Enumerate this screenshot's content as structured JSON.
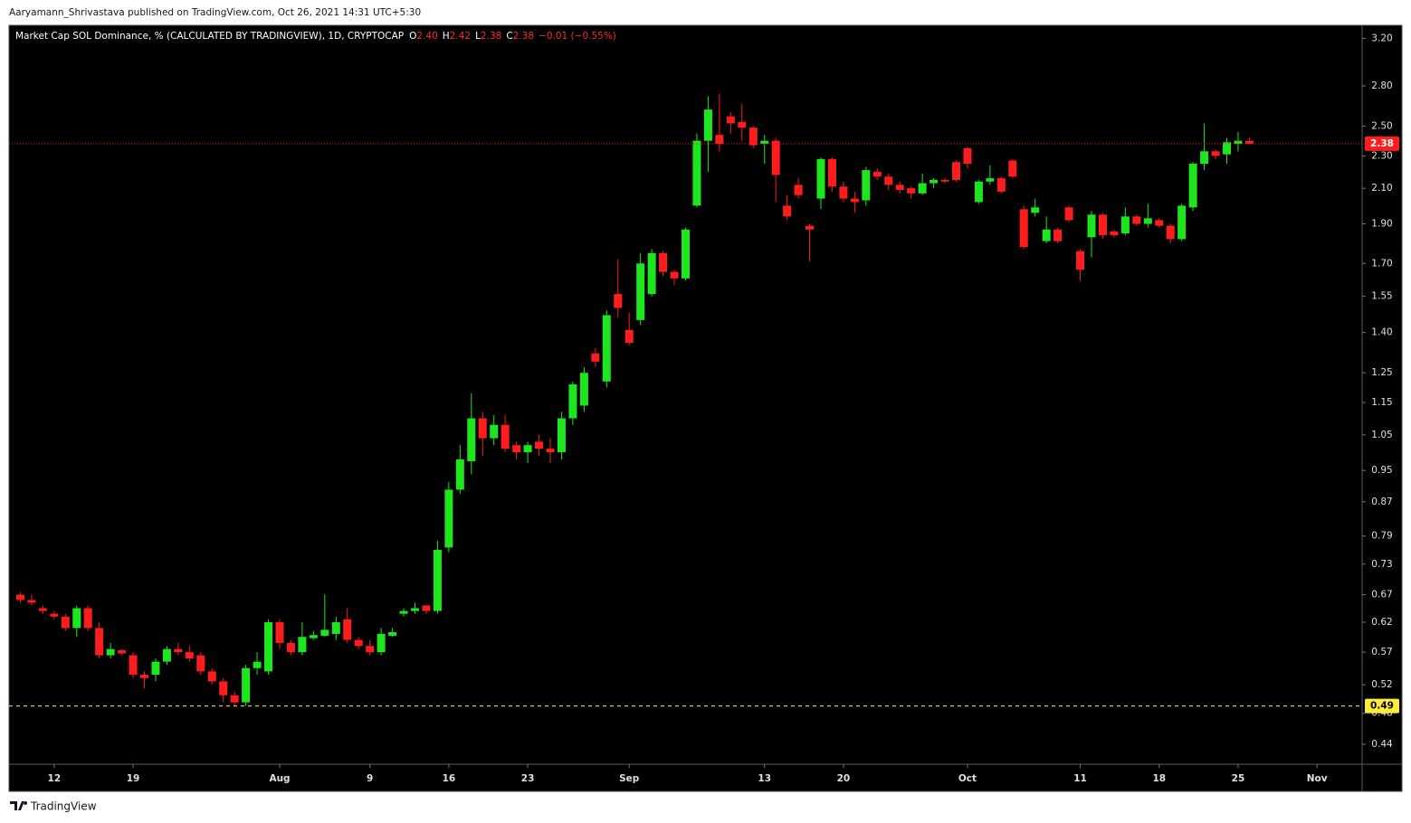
{
  "header": {
    "publisher": "Aaryamann_Shrivastava published on TradingView.com, Oct 26, 2021 14:31 UTC+5:30"
  },
  "footer": {
    "brand": "TradingView"
  },
  "chart_data": {
    "type": "candlestick",
    "title": "Market Cap SOL Dominance, % (CALCULATED BY TRADINGVIEW), 1D, CRYPTOCAP",
    "ohlc": {
      "labels": [
        "O",
        "H",
        "L",
        "C"
      ],
      "values": [
        2.4,
        2.42,
        2.38,
        2.38
      ],
      "value_labels": [
        "2.40",
        "2.42",
        "2.38",
        "2.38"
      ],
      "change": "−0.01 (−0.55%)"
    },
    "log_scale": true,
    "grid": false,
    "up_color": "#1ee61e",
    "down_color": "#ff1c1c",
    "xlim": [
      "2021-07-08",
      "2021-11-05"
    ],
    "ylim": [
      0.416,
      3.32
    ],
    "xticks": [
      {
        "value": "2021-07-12",
        "label": "12"
      },
      {
        "value": "2021-07-19",
        "label": "19"
      },
      {
        "value": "2021-08-01",
        "label": "Aug"
      },
      {
        "value": "2021-08-09",
        "label": "9"
      },
      {
        "value": "2021-08-16",
        "label": "16"
      },
      {
        "value": "2021-08-23",
        "label": "23"
      },
      {
        "value": "2021-09-01",
        "label": "Sep"
      },
      {
        "value": "2021-09-13",
        "label": "13"
      },
      {
        "value": "2021-09-20",
        "label": "20"
      },
      {
        "value": "2021-10-01",
        "label": "Oct"
      },
      {
        "value": "2021-10-11",
        "label": "11"
      },
      {
        "value": "2021-10-18",
        "label": "18"
      },
      {
        "value": "2021-10-25",
        "label": "25"
      },
      {
        "value": "2021-11-01",
        "label": "Nov"
      }
    ],
    "yticks": [
      {
        "value": 3.2,
        "label": "3.20"
      },
      {
        "value": 2.8,
        "label": "2.80"
      },
      {
        "value": 2.5,
        "label": "2.50"
      },
      {
        "value": 2.3,
        "label": "2.30"
      },
      {
        "value": 2.1,
        "label": "2.10"
      },
      {
        "value": 1.9,
        "label": "1.90"
      },
      {
        "value": 1.7,
        "label": "1.70"
      },
      1.55,
      {
        "value": 1.4,
        "label": "1.40"
      },
      1.25,
      1.15,
      1.05,
      0.95,
      0.87,
      0.79,
      0.73,
      0.67,
      0.62,
      0.57,
      0.52,
      0.48,
      0.44
    ],
    "last_price": {
      "value": 2.38,
      "label": "2.38",
      "color": "#ff1c1c"
    },
    "low_line": {
      "value": 0.49,
      "label": "0.49",
      "color": "#ffeb3b"
    },
    "x": [
      "2021-07-09",
      "2021-07-10",
      "2021-07-11",
      "2021-07-12",
      "2021-07-13",
      "2021-07-14",
      "2021-07-15",
      "2021-07-16",
      "2021-07-17",
      "2021-07-18",
      "2021-07-19",
      "2021-07-20",
      "2021-07-21",
      "2021-07-22",
      "2021-07-23",
      "2021-07-24",
      "2021-07-25",
      "2021-07-26",
      "2021-07-27",
      "2021-07-28",
      "2021-07-29",
      "2021-07-30",
      "2021-07-31",
      "2021-08-01",
      "2021-08-02",
      "2021-08-03",
      "2021-08-04",
      "2021-08-05",
      "2021-08-06",
      "2021-08-07",
      "2021-08-08",
      "2021-08-09",
      "2021-08-10",
      "2021-08-11",
      "2021-08-12",
      "2021-08-13",
      "2021-08-14",
      "2021-08-15",
      "2021-08-16",
      "2021-08-17",
      "2021-08-18",
      "2021-08-19",
      "2021-08-20",
      "2021-08-21",
      "2021-08-22",
      "2021-08-23",
      "2021-08-24",
      "2021-08-25",
      "2021-08-26",
      "2021-08-27",
      "2021-08-28",
      "2021-08-29",
      "2021-08-30",
      "2021-08-31",
      "2021-09-01",
      "2021-09-02",
      "2021-09-03",
      "2021-09-04",
      "2021-09-05",
      "2021-09-06",
      "2021-09-07",
      "2021-09-08",
      "2021-09-09",
      "2021-09-10",
      "2021-09-11",
      "2021-09-12",
      "2021-09-13",
      "2021-09-14",
      "2021-09-15",
      "2021-09-16",
      "2021-09-17",
      "2021-09-18",
      "2021-09-19",
      "2021-09-20",
      "2021-09-21",
      "2021-09-22",
      "2021-09-23",
      "2021-09-24",
      "2021-09-25",
      "2021-09-26",
      "2021-09-27",
      "2021-09-28",
      "2021-09-29",
      "2021-09-30",
      "2021-10-01",
      "2021-10-02",
      "2021-10-03",
      "2021-10-04",
      "2021-10-05",
      "2021-10-06",
      "2021-10-07",
      "2021-10-08",
      "2021-10-09",
      "2021-10-10",
      "2021-10-11",
      "2021-10-12",
      "2021-10-13",
      "2021-10-14",
      "2021-10-15",
      "2021-10-16",
      "2021-10-17",
      "2021-10-18",
      "2021-10-19",
      "2021-10-20",
      "2021-10-21",
      "2021-10-22",
      "2021-10-23",
      "2021-10-24",
      "2021-10-25",
      "2021-10-26"
    ],
    "open": [
      0.67,
      0.66,
      0.645,
      0.635,
      0.63,
      0.61,
      0.645,
      0.61,
      0.565,
      0.573,
      0.565,
      0.535,
      0.535,
      0.555,
      0.575,
      0.57,
      0.565,
      0.54,
      0.525,
      0.505,
      0.495,
      0.545,
      0.54,
      0.62,
      0.585,
      0.57,
      0.593,
      0.597,
      0.6,
      0.625,
      0.59,
      0.58,
      0.57,
      0.597,
      0.635,
      0.64,
      0.65,
      0.64,
      0.765,
      0.9,
      0.975,
      1.1,
      1.04,
      1.08,
      1.02,
      1.0,
      1.03,
      1.01,
      1.0,
      1.1,
      1.14,
      1.32,
      1.22,
      1.56,
      1.41,
      1.45,
      1.56,
      1.75,
      1.66,
      1.63,
      2.0,
      2.4,
      2.44,
      2.57,
      2.53,
      2.49,
      2.38,
      2.4,
      2.0,
      2.12,
      1.89,
      2.04,
      2.28,
      2.11,
      2.04,
      2.03,
      2.2,
      2.17,
      2.12,
      2.1,
      2.07,
      2.13,
      2.15,
      2.26,
      2.35,
      2.02,
      2.14,
      2.16,
      2.27,
      1.98,
      1.96,
      1.81,
      1.87,
      1.99,
      1.76,
      1.83,
      1.95,
      1.86,
      1.85,
      1.94,
      1.9,
      1.92,
      1.89,
      1.82,
      1.99,
      2.25,
      2.33,
      2.31,
      2.38,
      2.4
    ],
    "high": [
      0.675,
      0.67,
      0.65,
      0.64,
      0.635,
      0.65,
      0.65,
      0.62,
      0.585,
      0.575,
      0.57,
      0.54,
      0.56,
      0.58,
      0.585,
      0.58,
      0.57,
      0.545,
      0.53,
      0.51,
      0.55,
      0.57,
      0.625,
      0.625,
      0.59,
      0.62,
      0.605,
      0.67,
      0.63,
      0.645,
      0.595,
      0.59,
      0.61,
      0.61,
      0.645,
      0.655,
      0.65,
      0.78,
      0.92,
      1.02,
      1.18,
      1.12,
      1.11,
      1.11,
      1.03,
      1.03,
      1.05,
      1.04,
      1.12,
      1.22,
      1.27,
      1.34,
      1.49,
      1.72,
      1.48,
      1.75,
      1.77,
      1.76,
      1.67,
      1.88,
      2.45,
      2.72,
      2.74,
      2.6,
      2.66,
      2.5,
      2.44,
      2.42,
      2.06,
      2.16,
      1.9,
      2.29,
      2.29,
      2.14,
      2.08,
      2.23,
      2.22,
      2.19,
      2.14,
      2.11,
      2.19,
      2.16,
      2.16,
      2.27,
      2.36,
      2.15,
      2.24,
      2.17,
      2.28,
      2.0,
      2.04,
      1.94,
      1.88,
      2.0,
      1.77,
      1.97,
      1.96,
      1.87,
      1.99,
      1.95,
      2.01,
      1.93,
      1.9,
      2.01,
      2.26,
      2.52,
      2.34,
      2.42,
      2.46,
      2.42
    ],
    "low": [
      0.655,
      0.65,
      0.635,
      0.625,
      0.605,
      0.595,
      0.605,
      0.56,
      0.56,
      0.565,
      0.53,
      0.515,
      0.525,
      0.55,
      0.565,
      0.555,
      0.535,
      0.52,
      0.495,
      0.49,
      0.49,
      0.535,
      0.535,
      0.575,
      0.565,
      0.565,
      0.59,
      0.595,
      0.59,
      0.585,
      0.575,
      0.565,
      0.565,
      0.595,
      0.63,
      0.635,
      0.635,
      0.635,
      0.755,
      0.89,
      0.94,
      0.99,
      1.02,
      1.0,
      0.98,
      0.97,
      0.99,
      0.97,
      0.98,
      1.08,
      1.12,
      1.27,
      1.2,
      1.46,
      1.35,
      1.43,
      1.55,
      1.64,
      1.6,
      1.62,
      1.99,
      2.2,
      2.33,
      2.45,
      2.4,
      2.35,
      2.25,
      2.02,
      1.92,
      2.04,
      1.71,
      1.98,
      2.08,
      2.02,
      1.96,
      2.0,
      2.15,
      2.09,
      2.07,
      2.04,
      2.06,
      2.1,
      2.13,
      2.14,
      2.22,
      2.01,
      2.12,
      2.07,
      2.16,
      1.77,
      1.94,
      1.8,
      1.8,
      1.91,
      1.62,
      1.73,
      1.82,
      1.83,
      1.84,
      1.89,
      1.88,
      1.88,
      1.8,
      1.81,
      1.97,
      2.21,
      2.28,
      2.25,
      2.33,
      2.38
    ],
    "close": [
      0.66,
      0.655,
      0.64,
      0.63,
      0.61,
      0.645,
      0.61,
      0.565,
      0.575,
      0.568,
      0.535,
      0.53,
      0.555,
      0.575,
      0.57,
      0.56,
      0.54,
      0.525,
      0.505,
      0.495,
      0.545,
      0.555,
      0.62,
      0.585,
      0.57,
      0.595,
      0.598,
      0.607,
      0.62,
      0.59,
      0.58,
      0.57,
      0.6,
      0.603,
      0.64,
      0.645,
      0.64,
      0.76,
      0.9,
      0.98,
      1.1,
      1.04,
      1.08,
      1.01,
      1.0,
      1.02,
      1.01,
      1.0,
      1.1,
      1.21,
      1.25,
      1.29,
      1.47,
      1.5,
      1.36,
      1.7,
      1.75,
      1.66,
      1.63,
      1.87,
      2.4,
      2.62,
      2.38,
      2.52,
      2.49,
      2.37,
      2.4,
      2.18,
      1.94,
      2.06,
      1.87,
      2.28,
      2.11,
      2.04,
      2.02,
      2.21,
      2.17,
      2.12,
      2.09,
      2.07,
      2.13,
      2.15,
      2.14,
      2.15,
      2.25,
      2.14,
      2.16,
      2.08,
      2.17,
      1.78,
      1.99,
      1.87,
      1.81,
      1.92,
      1.67,
      1.95,
      1.84,
      1.84,
      1.94,
      1.9,
      1.93,
      1.89,
      1.82,
      2.0,
      2.25,
      2.33,
      2.3,
      2.39,
      2.4,
      2.38
    ]
  }
}
